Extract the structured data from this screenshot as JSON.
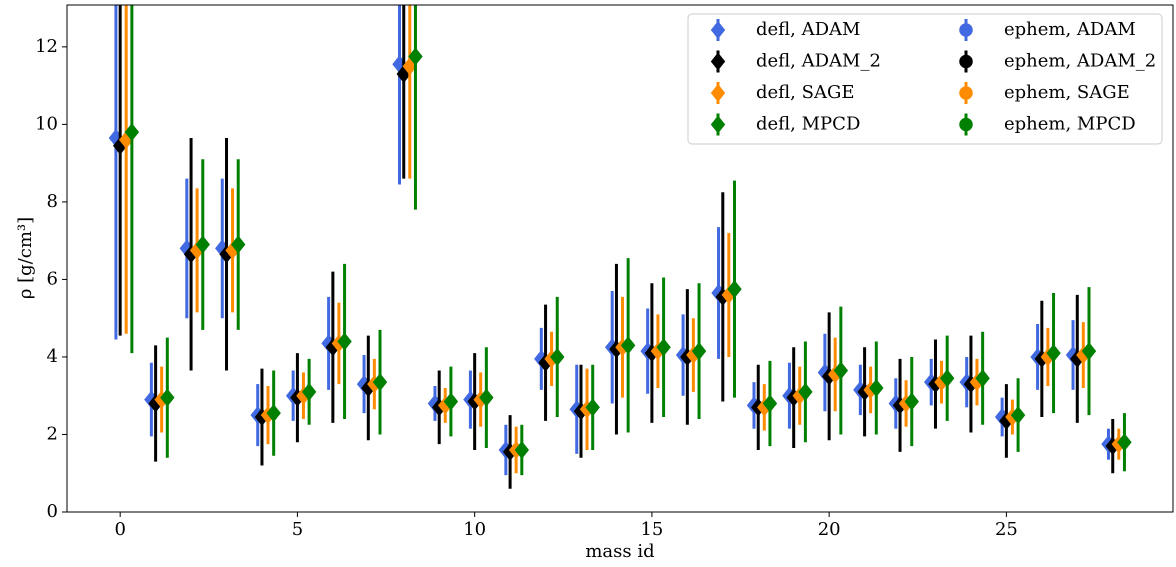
{
  "chart_data": {
    "type": "errorbar",
    "xlabel": "mass id",
    "ylabel": "ρ [g/cm³]",
    "x": [
      0,
      1,
      2,
      3,
      4,
      5,
      6,
      7,
      8,
      9,
      10,
      11,
      12,
      13,
      14,
      15,
      16,
      17,
      18,
      19,
      20,
      21,
      22,
      23,
      24,
      25,
      26,
      27,
      28
    ],
    "xlim": [
      -1.5,
      29.7
    ],
    "ylim": [
      0,
      13.08
    ],
    "xticks": [
      0,
      5,
      10,
      15,
      20,
      25
    ],
    "yticks": [
      0,
      2,
      4,
      6,
      8,
      10,
      12
    ],
    "legend": "upper right",
    "legend_columns": 2,
    "series": [
      {
        "name": "defl, ADAM",
        "color": "#4169e1",
        "marker": "diamond",
        "values": [
          9.65,
          2.9,
          6.8,
          6.8,
          2.5,
          3.0,
          4.35,
          3.3,
          11.55,
          2.8,
          2.9,
          1.6,
          3.95,
          2.65,
          4.25,
          4.15,
          4.05,
          5.65,
          2.75,
          3.0,
          3.6,
          3.15,
          2.8,
          3.35,
          3.35,
          2.45,
          4.0,
          4.05,
          1.75
        ],
        "errors": [
          5.2,
          0.95,
          1.8,
          1.8,
          0.8,
          0.65,
          1.2,
          0.75,
          3.1,
          0.45,
          0.75,
          0.65,
          0.8,
          1.15,
          1.45,
          1.1,
          1.05,
          1.7,
          0.6,
          0.85,
          1.0,
          0.65,
          0.65,
          0.6,
          0.65,
          0.5,
          0.85,
          0.9,
          0.4
        ]
      },
      {
        "name": "defl, ADAM_2",
        "color": "#000000",
        "marker": "diamond",
        "values": [
          9.45,
          2.8,
          6.65,
          6.65,
          2.45,
          2.95,
          4.25,
          3.2,
          11.3,
          2.7,
          2.85,
          1.55,
          3.85,
          2.6,
          4.2,
          4.1,
          4.0,
          5.55,
          2.7,
          2.95,
          3.5,
          3.1,
          2.75,
          3.3,
          3.3,
          2.35,
          3.95,
          3.95,
          1.7
        ],
        "errors": [
          4.9,
          1.5,
          3.0,
          3.0,
          1.25,
          1.15,
          1.95,
          1.35,
          2.7,
          0.95,
          1.25,
          0.95,
          1.5,
          1.2,
          2.2,
          1.8,
          1.75,
          2.7,
          1.1,
          1.3,
          1.65,
          1.15,
          1.2,
          1.15,
          1.25,
          0.95,
          1.5,
          1.65,
          0.7
        ]
      },
      {
        "name": "defl, SAGE",
        "color": "#ff8c00",
        "marker": "diamond",
        "values": [
          9.6,
          2.9,
          6.75,
          6.75,
          2.5,
          3.0,
          4.35,
          3.3,
          11.5,
          2.75,
          2.9,
          1.6,
          3.95,
          2.65,
          4.25,
          4.15,
          4.05,
          5.6,
          2.7,
          3.0,
          3.55,
          3.15,
          2.8,
          3.35,
          3.35,
          2.45,
          4.0,
          4.05,
          1.75
        ],
        "errors": [
          5.0,
          0.85,
          1.6,
          1.6,
          0.75,
          0.6,
          1.05,
          0.65,
          2.9,
          0.45,
          0.7,
          0.6,
          0.7,
          1.05,
          1.3,
          0.95,
          0.95,
          1.6,
          0.6,
          0.75,
          0.95,
          0.6,
          0.6,
          0.55,
          0.6,
          0.45,
          0.75,
          0.85,
          0.4
        ]
      },
      {
        "name": "defl, MPCD",
        "color": "#008000",
        "marker": "diamond",
        "values": [
          9.8,
          2.95,
          6.9,
          6.9,
          2.55,
          3.1,
          4.4,
          3.35,
          11.75,
          2.85,
          2.95,
          1.6,
          4.0,
          2.7,
          4.3,
          4.25,
          4.15,
          5.75,
          2.8,
          3.1,
          3.65,
          3.2,
          2.85,
          3.45,
          3.45,
          2.5,
          4.1,
          4.15,
          1.8
        ],
        "errors": [
          5.7,
          1.55,
          2.2,
          2.2,
          1.1,
          0.85,
          2.0,
          1.35,
          3.95,
          0.9,
          1.3,
          0.65,
          1.55,
          1.1,
          2.25,
          1.8,
          1.75,
          2.8,
          1.1,
          1.3,
          1.65,
          1.2,
          1.15,
          1.1,
          1.2,
          0.95,
          1.55,
          1.65,
          0.75
        ]
      },
      {
        "name": "ephem, ADAM",
        "color": "#4169e1",
        "marker": "circle",
        "values": [
          null,
          null,
          null,
          null,
          null,
          null,
          null,
          null,
          null,
          null,
          null,
          null,
          null,
          null,
          null,
          null,
          null,
          null,
          null,
          null,
          null,
          null,
          null,
          null,
          null,
          null,
          null,
          null,
          null
        ],
        "errors": [
          null,
          null,
          null,
          null,
          null,
          null,
          null,
          null,
          null,
          null,
          null,
          null,
          null,
          null,
          null,
          null,
          null,
          null,
          null,
          null,
          null,
          null,
          null,
          null,
          null,
          null,
          null,
          null,
          null
        ]
      },
      {
        "name": "ephem, ADAM_2",
        "color": "#000000",
        "marker": "circle",
        "values": [
          null,
          null,
          null,
          null,
          null,
          null,
          null,
          null,
          null,
          null,
          null,
          null,
          null,
          null,
          null,
          null,
          null,
          null,
          null,
          null,
          null,
          null,
          null,
          null,
          null,
          null,
          null,
          null,
          null
        ],
        "errors": [
          null,
          null,
          null,
          null,
          null,
          null,
          null,
          null,
          null,
          null,
          null,
          null,
          null,
          null,
          null,
          null,
          null,
          null,
          null,
          null,
          null,
          null,
          null,
          null,
          null,
          null,
          null,
          null,
          null
        ]
      },
      {
        "name": "ephem, SAGE",
        "color": "#ff8c00",
        "marker": "circle",
        "values": [
          null,
          null,
          null,
          null,
          null,
          null,
          null,
          null,
          null,
          null,
          null,
          null,
          null,
          null,
          null,
          null,
          null,
          null,
          null,
          null,
          null,
          null,
          null,
          null,
          null,
          null,
          null,
          null,
          null
        ],
        "errors": [
          null,
          null,
          null,
          null,
          null,
          null,
          null,
          null,
          null,
          null,
          null,
          null,
          null,
          null,
          null,
          null,
          null,
          null,
          null,
          null,
          null,
          null,
          null,
          null,
          null,
          null,
          null,
          null,
          null
        ]
      },
      {
        "name": "ephem, MPCD",
        "color": "#008000",
        "marker": "circle",
        "values": [
          null,
          null,
          null,
          null,
          null,
          null,
          null,
          null,
          null,
          null,
          null,
          null,
          null,
          null,
          null,
          null,
          null,
          null,
          null,
          null,
          null,
          null,
          null,
          null,
          null,
          null,
          null,
          null,
          null
        ],
        "errors": [
          null,
          null,
          null,
          null,
          null,
          null,
          null,
          null,
          null,
          null,
          null,
          null,
          null,
          null,
          null,
          null,
          null,
          null,
          null,
          null,
          null,
          null,
          null,
          null,
          null,
          null,
          null,
          null,
          null
        ]
      }
    ]
  }
}
